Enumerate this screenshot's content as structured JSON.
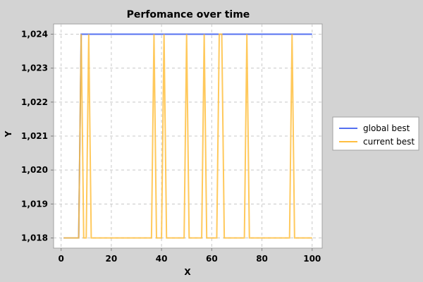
{
  "chart_data": {
    "type": "line",
    "title": "Perfomance over time",
    "xlabel": "X",
    "ylabel": "Y",
    "xlim": [
      -3,
      104
    ],
    "ylim": [
      1017.7,
      1024.3
    ],
    "x_ticks": [
      0,
      20,
      40,
      60,
      80,
      100
    ],
    "x_tick_labels": [
      "0",
      "20",
      "40",
      "60",
      "80",
      "100"
    ],
    "y_ticks": [
      1018,
      1019,
      1020,
      1021,
      1022,
      1023,
      1024
    ],
    "y_tick_labels": [
      "1,018",
      "1,019",
      "1,020",
      "1,021",
      "1,022",
      "1,023",
      "1,024"
    ],
    "grid": true,
    "legend": "right",
    "series": [
      {
        "name": "global best",
        "color": "#5470f0",
        "x": [
          1,
          7,
          8,
          100
        ],
        "y": [
          1018,
          1018,
          1024,
          1024
        ]
      },
      {
        "name": "current best",
        "color": "#ffbf40",
        "x": [
          1,
          7,
          8,
          9,
          10,
          11,
          12,
          36,
          37,
          38,
          40,
          41,
          42,
          49,
          50,
          51,
          56,
          57,
          58,
          62,
          63,
          64,
          65,
          73,
          74,
          75,
          91,
          92,
          93,
          100
        ],
        "y": [
          1018,
          1018,
          1024,
          1018,
          1018,
          1024,
          1018,
          1018,
          1024,
          1018,
          1018,
          1024,
          1018,
          1018,
          1024,
          1018,
          1018,
          1024,
          1018,
          1018,
          1024,
          1024,
          1018,
          1018,
          1024,
          1018,
          1018,
          1024,
          1018,
          1018
        ]
      }
    ]
  }
}
